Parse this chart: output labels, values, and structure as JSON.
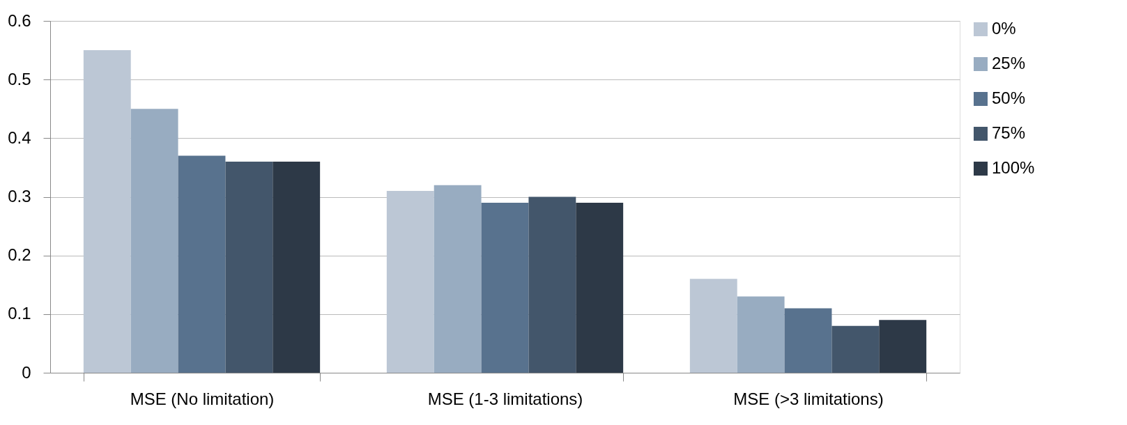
{
  "chart_data": {
    "type": "bar",
    "categories": [
      "MSE (No limitation)",
      "MSE (1-3 limitations)",
      "MSE (>3 limitations)"
    ],
    "series": [
      {
        "name": "0%",
        "color": "#bcc7d5",
        "values": [
          0.55,
          0.31,
          0.16
        ]
      },
      {
        "name": "25%",
        "color": "#98acc1",
        "values": [
          0.45,
          0.32,
          0.13
        ]
      },
      {
        "name": "50%",
        "color": "#58728e",
        "values": [
          0.37,
          0.29,
          0.11
        ]
      },
      {
        "name": "75%",
        "color": "#43566b",
        "values": [
          0.36,
          0.3,
          0.08
        ]
      },
      {
        "name": "100%",
        "color": "#2d3947",
        "values": [
          0.36,
          0.29,
          0.09
        ]
      }
    ],
    "ylim": [
      0,
      0.6
    ],
    "yticks": [
      0,
      0.1,
      0.2,
      0.3,
      0.4,
      0.5,
      0.6
    ],
    "grid": "y",
    "legend": "right"
  }
}
